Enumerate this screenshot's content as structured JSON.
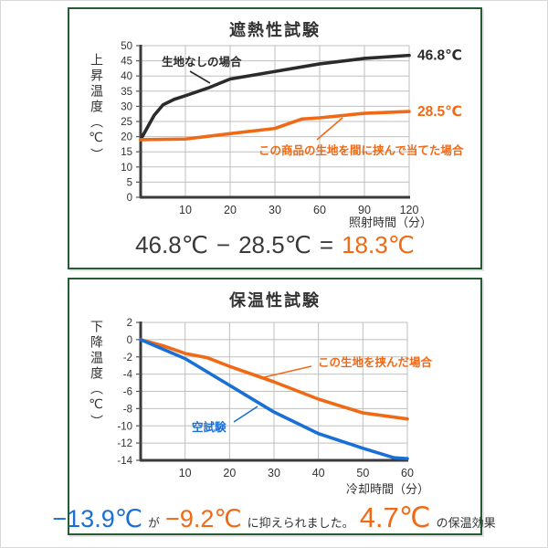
{
  "colors": {
    "orange": "#f06a16",
    "blue": "#1a6fd6",
    "black_line": "#2b2b2b",
    "frame_green": "#265c33",
    "grid": "#bfbfbf"
  },
  "chart_data": [
    {
      "type": "line",
      "title": "遮熱性試験",
      "ylabel": "上昇温度（℃）",
      "xlabel": "照射時間（分）",
      "xlabel_note": "x axis is evenly spaced categories",
      "x_ticks": [
        "10",
        "20",
        "30",
        "60",
        "90",
        "120"
      ],
      "y_ticks": [
        50,
        45,
        40,
        35,
        30,
        25,
        20,
        15,
        10,
        5,
        0
      ],
      "ylim": [
        0,
        50
      ],
      "categories_minutes": [
        0,
        10,
        20,
        30,
        60,
        90,
        120
      ],
      "series": [
        {
          "name": "生地なしの場合",
          "color": "#2b2b2b",
          "values": [
            19,
            33.5,
            39,
            41.5,
            44,
            45.8,
            46.8
          ],
          "points": [
            [
              0,
              19
            ],
            [
              0.3,
              27
            ],
            [
              0.5,
              30.5
            ],
            [
              0.75,
              32.3
            ],
            [
              1,
              33.5
            ],
            [
              1.5,
              36
            ],
            [
              2,
              39
            ],
            [
              3,
              41.5
            ],
            [
              4,
              44
            ],
            [
              5,
              45.8
            ],
            [
              6,
              46.8
            ]
          ],
          "end_label": "46.8℃"
        },
        {
          "name": "この商品の生地を間に挟んで当てた場合",
          "color": "#f06a16",
          "values": [
            19,
            19.2,
            21,
            22.5,
            26,
            27.5,
            28.5
          ],
          "points": [
            [
              0,
              19
            ],
            [
              1,
              19.2
            ],
            [
              2,
              21
            ],
            [
              3,
              22.7
            ],
            [
              3.6,
              25.8
            ],
            [
              4,
              26.2
            ],
            [
              5,
              27.7
            ],
            [
              6,
              28.3
            ]
          ],
          "end_label": "28.5℃"
        }
      ],
      "equation": {
        "minuend": "46.8℃",
        "minus": "−",
        "subtrahend": "28.5℃",
        "equals": "=",
        "result": "18.3℃"
      }
    },
    {
      "type": "line",
      "title": "保温性試験",
      "ylabel": "下降温度（℃）",
      "xlabel": "冷却時間（分）",
      "x_ticks": [
        "10",
        "20",
        "30",
        "40",
        "50",
        "60"
      ],
      "y_ticks": [
        2,
        0,
        -2,
        -4,
        -6,
        -8,
        -10,
        -12,
        -14
      ],
      "ylim": [
        -14,
        2
      ],
      "categories_minutes": [
        0,
        10,
        20,
        30,
        40,
        50,
        60
      ],
      "series": [
        {
          "name": "この生地を挟んだ場合",
          "color": "#f06a16",
          "values": [
            0,
            -1.6,
            -3.1,
            -4.9,
            -6.9,
            -8.5,
            -9.2
          ],
          "points": [
            [
              0,
              0
            ],
            [
              0.5,
              -0.7
            ],
            [
              1,
              -1.6
            ],
            [
              1.5,
              -2.1
            ],
            [
              2,
              -3.1
            ],
            [
              3,
              -4.9
            ],
            [
              4,
              -6.9
            ],
            [
              5,
              -8.5
            ],
            [
              6,
              -9.2
            ]
          ]
        },
        {
          "name": "空試験",
          "color": "#1a6fd6",
          "values": [
            0,
            -2.2,
            -5.3,
            -8.4,
            -10.9,
            -12.6,
            -13.9
          ],
          "points": [
            [
              0,
              0
            ],
            [
              1,
              -2.2
            ],
            [
              2,
              -5.3
            ],
            [
              3,
              -8.4
            ],
            [
              4,
              -10.9
            ],
            [
              5,
              -12.6
            ],
            [
              5.7,
              -13.7
            ],
            [
              6,
              -13.8
            ]
          ]
        }
      ],
      "conclusion": {
        "value_before": "−13.9℃",
        "particle": "が",
        "value_after": "−9.2℃",
        "text": "に抑えられました。",
        "effect": "4.7℃",
        "effect_text": "の保温効果"
      }
    }
  ]
}
